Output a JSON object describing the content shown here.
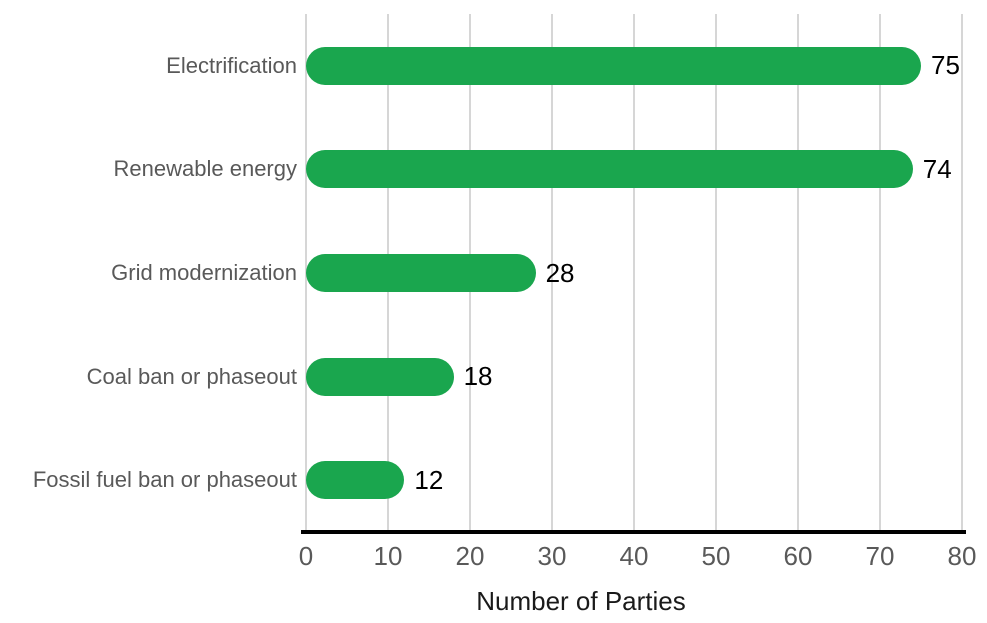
{
  "chart_data": {
    "type": "bar",
    "orientation": "horizontal",
    "title": "",
    "xlabel": "Number of Parties",
    "ylabel": "",
    "categories": [
      "Electrification",
      "Renewable energy",
      "Grid modernization",
      "Coal ban or phaseout",
      "Fossil fuel ban or phaseout"
    ],
    "values": [
      75,
      74,
      28,
      18,
      12
    ],
    "data_labels": [
      75,
      74,
      28,
      18,
      12
    ],
    "xlim": [
      0,
      80
    ],
    "xticks": [
      0,
      10,
      20,
      30,
      40,
      50,
      60,
      70,
      80
    ],
    "grid": "vertical",
    "legend": "none"
  },
  "colors": {
    "bar": "#1AA64E",
    "gridline": "#D6D6D6",
    "axis_line": "#000000",
    "category_label": "#595959",
    "tick_label": "#595959",
    "value_label": "#000000",
    "axis_title": "#1A1A1A",
    "background": "#FFFFFF"
  }
}
